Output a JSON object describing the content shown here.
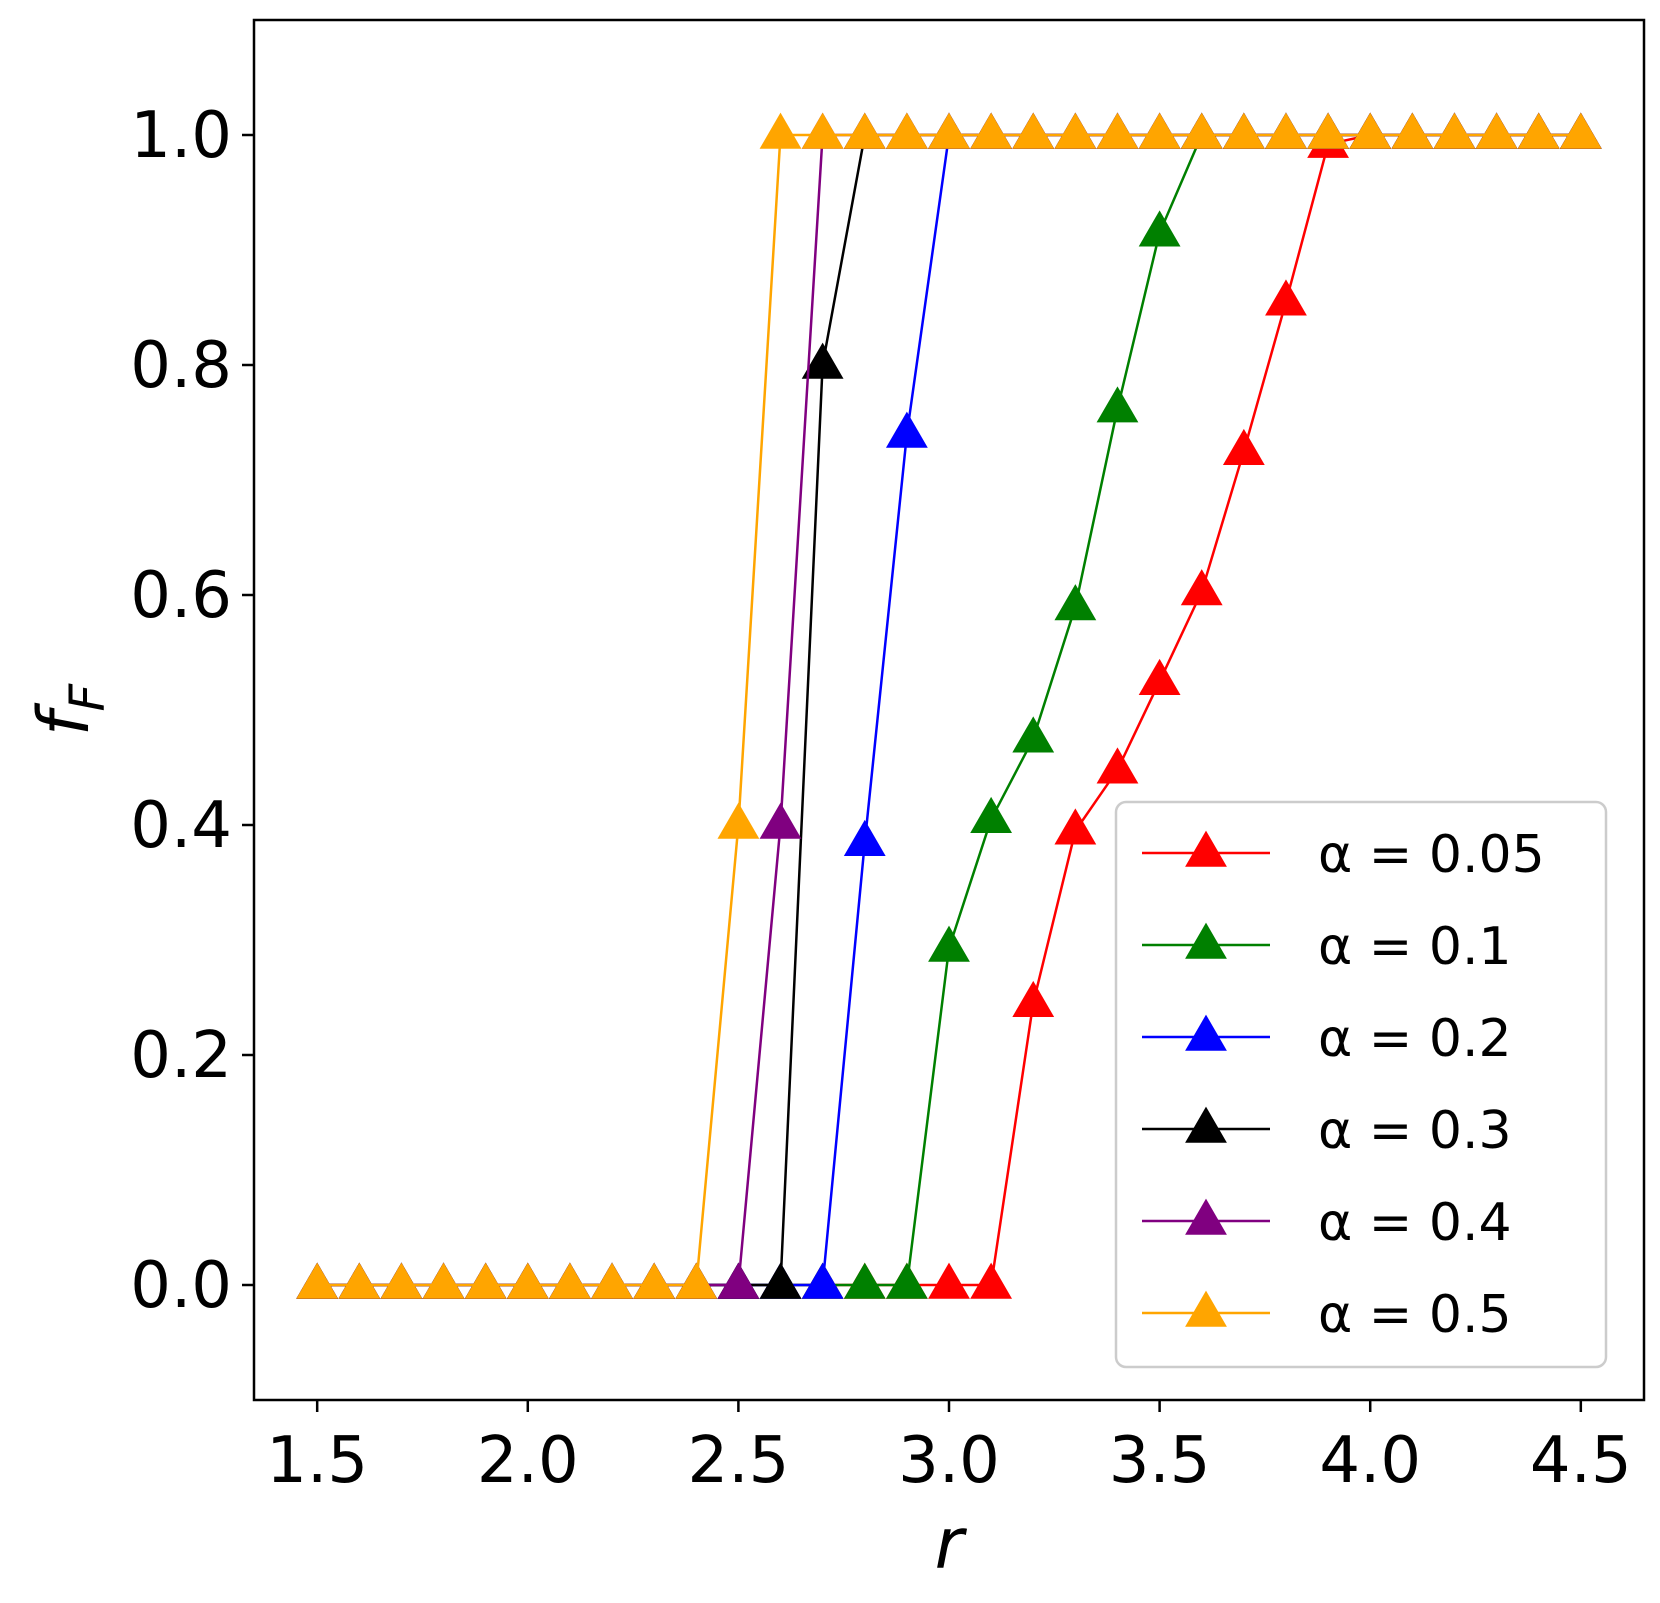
{
  "chart_data": {
    "type": "line",
    "xlabel": "r",
    "ylabel_main": "f",
    "ylabel_sub": "F",
    "xlim": [
      1.35,
      4.65
    ],
    "ylim": [
      -0.1,
      1.1
    ],
    "xticks": [
      "1.5",
      "2.0",
      "2.5",
      "3.0",
      "3.5",
      "4.0",
      "4.5"
    ],
    "xtick_values": [
      1.5,
      2.0,
      2.5,
      3.0,
      3.5,
      4.0,
      4.5
    ],
    "yticks": [
      "0.0",
      "0.2",
      "0.4",
      "0.6",
      "0.8",
      "1.0"
    ],
    "ytick_values": [
      0.0,
      0.2,
      0.4,
      0.6,
      0.8,
      1.0
    ],
    "grid": false,
    "legend_position": "lower-right",
    "marker": "triangle-up",
    "series": [
      {
        "name": "α = 0.05",
        "color": "#ff0000",
        "x": [
          1.5,
          1.6,
          1.7,
          1.8,
          1.9,
          2.0,
          2.1,
          2.2,
          2.3,
          2.4,
          2.5,
          2.6,
          2.7,
          2.8,
          2.9,
          3.0,
          3.1,
          3.2,
          3.3,
          3.4,
          3.5,
          3.6,
          3.7,
          3.8,
          3.9,
          4.0,
          4.1,
          4.2,
          4.3,
          4.4,
          4.5
        ],
        "y": [
          0,
          0,
          0,
          0,
          0,
          0,
          0,
          0,
          0,
          0,
          0,
          0,
          0,
          0,
          0,
          0,
          0,
          0.245,
          0.395,
          0.448,
          0.525,
          0.603,
          0.725,
          0.855,
          0.992,
          1,
          1,
          1,
          1,
          1,
          1
        ]
      },
      {
        "name": "α = 0.1",
        "color": "#008000",
        "x": [
          1.5,
          1.6,
          1.7,
          1.8,
          1.9,
          2.0,
          2.1,
          2.2,
          2.3,
          2.4,
          2.5,
          2.6,
          2.7,
          2.8,
          2.9,
          3.0,
          3.1,
          3.2,
          3.3,
          3.4,
          3.5,
          3.6,
          3.7,
          3.8,
          3.9,
          4.0,
          4.1,
          4.2,
          4.3,
          4.4,
          4.5
        ],
        "y": [
          0,
          0,
          0,
          0,
          0,
          0,
          0,
          0,
          0,
          0,
          0,
          0,
          0,
          0,
          0,
          0.293,
          0.405,
          0.475,
          0.59,
          0.762,
          0.915,
          1,
          1,
          1,
          1,
          1,
          1,
          1,
          1,
          1,
          1
        ]
      },
      {
        "name": "α = 0.2",
        "color": "#0000ff",
        "x": [
          1.5,
          1.6,
          1.7,
          1.8,
          1.9,
          2.0,
          2.1,
          2.2,
          2.3,
          2.4,
          2.5,
          2.6,
          2.7,
          2.8,
          2.9,
          3.0,
          3.1,
          3.2,
          3.3,
          3.4,
          3.5,
          3.6,
          3.7,
          3.8,
          3.9,
          4.0,
          4.1,
          4.2,
          4.3,
          4.4,
          4.5
        ],
        "y": [
          0,
          0,
          0,
          0,
          0,
          0,
          0,
          0,
          0,
          0,
          0,
          0,
          0,
          0.385,
          0.74,
          1,
          1,
          1,
          1,
          1,
          1,
          1,
          1,
          1,
          1,
          1,
          1,
          1,
          1,
          1,
          1
        ]
      },
      {
        "name": "α = 0.3",
        "color": "#000000",
        "x": [
          1.5,
          1.6,
          1.7,
          1.8,
          1.9,
          2.0,
          2.1,
          2.2,
          2.3,
          2.4,
          2.5,
          2.6,
          2.7,
          2.8,
          2.9,
          3.0,
          3.1,
          3.2,
          3.3,
          3.4,
          3.5,
          3.6,
          3.7,
          3.8,
          3.9,
          4.0,
          4.1,
          4.2,
          4.3,
          4.4,
          4.5
        ],
        "y": [
          0,
          0,
          0,
          0,
          0,
          0,
          0,
          0,
          0,
          0,
          0,
          0,
          0.8,
          1,
          1,
          1,
          1,
          1,
          1,
          1,
          1,
          1,
          1,
          1,
          1,
          1,
          1,
          1,
          1,
          1,
          1
        ]
      },
      {
        "name": "α = 0.4",
        "color": "#800080",
        "x": [
          1.5,
          1.6,
          1.7,
          1.8,
          1.9,
          2.0,
          2.1,
          2.2,
          2.3,
          2.4,
          2.5,
          2.6,
          2.7,
          2.8,
          2.9,
          3.0,
          3.1,
          3.2,
          3.3,
          3.4,
          3.5,
          3.6,
          3.7,
          3.8,
          3.9,
          4.0,
          4.1,
          4.2,
          4.3,
          4.4,
          4.5
        ],
        "y": [
          0,
          0,
          0,
          0,
          0,
          0,
          0,
          0,
          0,
          0,
          0,
          0.4,
          1,
          1,
          1,
          1,
          1,
          1,
          1,
          1,
          1,
          1,
          1,
          1,
          1,
          1,
          1,
          1,
          1,
          1,
          1
        ]
      },
      {
        "name": "α = 0.5",
        "color": "#ffa500",
        "x": [
          1.5,
          1.6,
          1.7,
          1.8,
          1.9,
          2.0,
          2.1,
          2.2,
          2.3,
          2.4,
          2.5,
          2.6,
          2.7,
          2.8,
          2.9,
          3.0,
          3.1,
          3.2,
          3.3,
          3.4,
          3.5,
          3.6,
          3.7,
          3.8,
          3.9,
          4.0,
          4.1,
          4.2,
          4.3,
          4.4,
          4.5
        ],
        "y": [
          0,
          0,
          0,
          0,
          0,
          0,
          0,
          0,
          0,
          0,
          0.4,
          1,
          1,
          1,
          1,
          1,
          1,
          1,
          1,
          1,
          1,
          1,
          1,
          1,
          1,
          1,
          1,
          1,
          1,
          1,
          1
        ]
      }
    ]
  }
}
